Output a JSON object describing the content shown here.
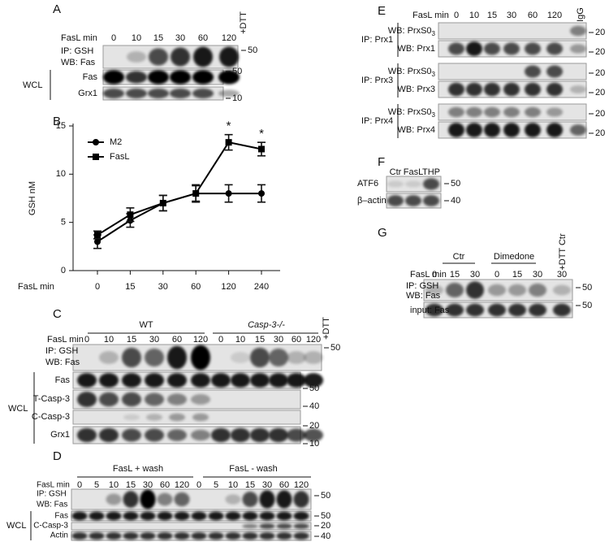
{
  "panels": {
    "A": {
      "label": "A",
      "lane_title": "FasL min",
      "lanes": [
        "0",
        "10",
        "15",
        "30",
        "60",
        "120"
      ],
      "control": "+DTT",
      "ip": [
        "IP: GSH",
        "WB: Fas"
      ],
      "wcl": "WCL",
      "wcl_rows": [
        "Fas",
        "Grx1"
      ],
      "mw": [
        "50",
        "50",
        "10"
      ]
    },
    "B": {
      "label": "B"
    },
    "C": {
      "label": "C",
      "groups": [
        "WT",
        "Casp-3-/-"
      ],
      "control": "+DTT",
      "lane_title": "FasL min",
      "lanes": [
        "0",
        "10",
        "15",
        "30",
        "60",
        "120",
        "0",
        "10",
        "15",
        "30",
        "60",
        "120"
      ],
      "ip": [
        "IP: GSH",
        "WB: Fas"
      ],
      "wcl": "WCL",
      "wcl_rows": [
        "Fas",
        "T-Casp-3",
        "C-Casp-3",
        "Grx1"
      ],
      "mw": [
        "50",
        "50",
        "40",
        "20",
        "10"
      ]
    },
    "D": {
      "label": "D",
      "groups": [
        "FasL + wash",
        "FasL - wash"
      ],
      "lane_title": "FasL min",
      "lanes": [
        "0",
        "5",
        "10",
        "15",
        "30",
        "60",
        "120",
        "0",
        "5",
        "10",
        "15",
        "30",
        "60",
        "120"
      ],
      "ip": [
        "IP: GSH",
        "WB: Fas"
      ],
      "wcl": "WCL",
      "wcl_rows": [
        "Fas",
        "C-Casp-3",
        "Actin"
      ],
      "mw": [
        "50",
        "50",
        "20",
        "40"
      ]
    },
    "E": {
      "label": "E",
      "lane_title": "FasL min",
      "lanes": [
        "0",
        "10",
        "15",
        "30",
        "60",
        "120"
      ],
      "control": "IgG",
      "sections": [
        {
          "ip": "IP: Prx1",
          "rows": [
            {
              "text": "WB: PrxS0",
              "sub": "3"
            },
            {
              "text": "WB: Prx1"
            }
          ],
          "mw": [
            "20",
            "20"
          ]
        },
        {
          "ip": "IP: Prx3",
          "rows": [
            {
              "text": "WB: PrxS0",
              "sub": "3"
            },
            {
              "text": "WB: Prx3"
            }
          ],
          "mw": [
            "20",
            "20"
          ]
        },
        {
          "ip": "IP: Prx4",
          "rows": [
            {
              "text": "WB: PrxS0",
              "sub": "3"
            },
            {
              "text": "WB: Prx4"
            }
          ],
          "mw": [
            "20",
            "20"
          ]
        }
      ]
    },
    "F": {
      "label": "F",
      "lanes": [
        "Ctr",
        "FasL",
        "THP"
      ],
      "rows": [
        "ATF6",
        "β–actin"
      ],
      "mw": [
        "50",
        "40"
      ]
    },
    "G": {
      "label": "G",
      "groups": [
        "Ctr",
        "Dimedone"
      ],
      "control": "+DTT Ctr",
      "lane_title": "FasL min",
      "lanes": [
        "0",
        "15",
        "30",
        "0",
        "15",
        "30",
        "30"
      ],
      "ip": [
        "IP: GSH",
        "WB: Fas"
      ],
      "rows": [
        "input: Fas"
      ],
      "mw": [
        "50",
        "50"
      ]
    }
  },
  "chart_data": {
    "type": "line",
    "categories": [
      "0",
      "15",
      "30",
      "60",
      "120",
      "240"
    ],
    "xlabel": "FasL min",
    "ylabel": "GSH nM",
    "ylim": [
      0,
      15
    ],
    "yticks": [
      0,
      5,
      10,
      15
    ],
    "legend": "upper left",
    "series": [
      {
        "name": "M2",
        "color": "#000000",
        "marker": "circle",
        "values": [
          3,
          5.2,
          7,
          8,
          8,
          8
        ],
        "errors": [
          0.7,
          0.7,
          0.8,
          0.8,
          0.9,
          0.9
        ]
      },
      {
        "name": "FasL",
        "color": "#000000",
        "marker": "square",
        "values": [
          3.7,
          5.8,
          7,
          8,
          13.3,
          12.6
        ],
        "errors": [
          0.4,
          0.7,
          0.8,
          0.9,
          0.8,
          0.7
        ]
      }
    ],
    "annotations": [
      {
        "text": "*",
        "category": "120"
      },
      {
        "text": "*",
        "category": "240"
      }
    ]
  }
}
